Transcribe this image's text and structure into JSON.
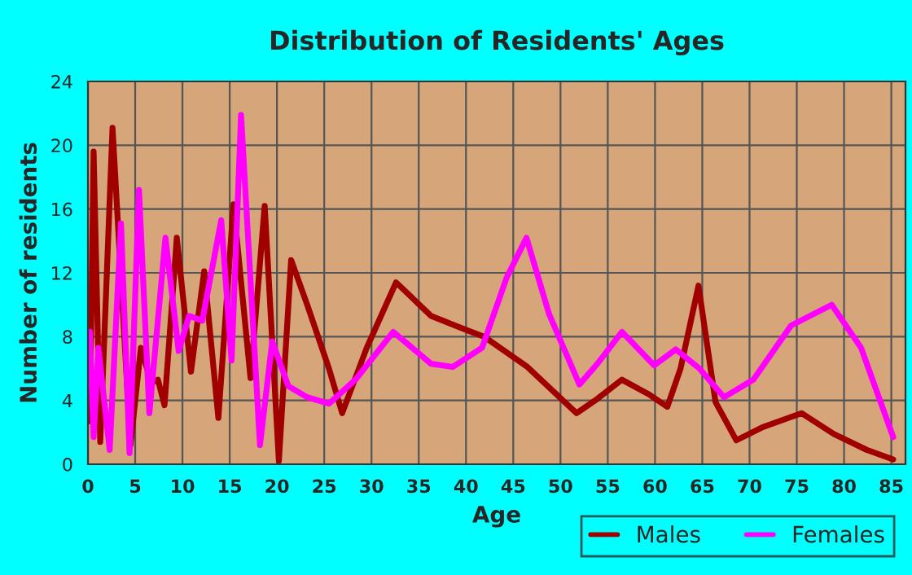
{
  "chart_data": {
    "type": "line",
    "title": "Distribution of Residents' Ages",
    "xlabel": "Age",
    "ylabel": "Number of residents",
    "xlim": [
      0,
      86.5
    ],
    "xticks": [
      0,
      5,
      10,
      15,
      20,
      25,
      30,
      35,
      40,
      45,
      50,
      55,
      60,
      65,
      70,
      75,
      80,
      85
    ],
    "ylim": [
      0,
      24
    ],
    "yticks": [
      0,
      4,
      8,
      12,
      16,
      20,
      24
    ],
    "grid": true,
    "legend": "bottom right",
    "line_style": "solid",
    "series": [
      {
        "name": "Males",
        "color": "#a00000",
        "x": [
          0.2,
          0.6,
          1.3,
          2.6,
          4.5,
          5.6,
          6.7,
          7.4,
          8.1,
          9.4,
          10.9,
          12.3,
          13.8,
          15.4,
          17.2,
          18.7,
          20.2,
          21.5,
          23.2,
          25.5,
          26.9,
          29.5,
          32.6,
          36.3,
          39.7,
          41.9,
          46.5,
          51.7,
          53.9,
          56.5,
          59.3,
          61.3,
          62.7,
          64.6,
          66.4,
          68.6,
          71.3,
          75.5,
          78.9,
          82.4,
          85.2
        ],
        "values": [
          2.7,
          19.6,
          1.4,
          21.1,
          1.2,
          7.3,
          5.1,
          5.3,
          3.7,
          14.2,
          5.8,
          12.1,
          2.9,
          16.3,
          5.4,
          16.2,
          0.2,
          12.8,
          10.0,
          6.0,
          3.2,
          7.3,
          11.4,
          9.3,
          8.5,
          8.0,
          6.1,
          3.2,
          4.1,
          5.3,
          4.4,
          3.6,
          6.0,
          11.2,
          3.9,
          1.5,
          2.3,
          3.2,
          1.9,
          0.9,
          0.3
        ]
      },
      {
        "name": "Females",
        "color": "#ff00ff",
        "x": [
          0.2,
          0.6,
          1.1,
          2.3,
          3.5,
          4.4,
          5.4,
          6.5,
          8.2,
          9.6,
          10.7,
          12.1,
          14.1,
          15.2,
          16.2,
          18.2,
          19.5,
          21.2,
          23.2,
          25.5,
          28.3,
          32.3,
          36.3,
          38.6,
          41.7,
          44.3,
          46.4,
          48.8,
          52.0,
          53.9,
          56.5,
          59.9,
          62.2,
          64.7,
          67.3,
          70.4,
          74.4,
          78.7,
          81.8,
          85.2
        ],
        "values": [
          8.3,
          1.7,
          7.3,
          0.9,
          15.1,
          0.7,
          17.2,
          3.2,
          14.2,
          7.1,
          9.3,
          9.0,
          15.3,
          6.5,
          21.9,
          1.2,
          7.7,
          4.9,
          4.2,
          3.8,
          5.3,
          8.3,
          6.3,
          6.1,
          7.3,
          11.7,
          14.2,
          9.4,
          5.0,
          6.3,
          8.3,
          6.2,
          7.2,
          6.0,
          4.2,
          5.3,
          8.7,
          10.0,
          7.3,
          1.7
        ]
      }
    ]
  }
}
